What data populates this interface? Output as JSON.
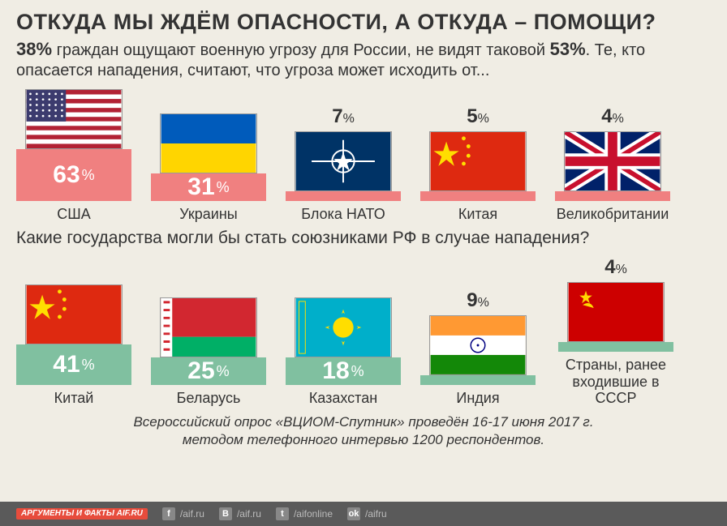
{
  "headline": "ОТКУДА МЫ ЖДЁМ ОПАСНОСТИ, А ОТКУДА – ПОМОЩИ?",
  "subhead_pct1": "38%",
  "subhead_text1": " граждан ощущают военную угрозу для России, не видят таковой ",
  "subhead_pct2": "53%",
  "subhead_text2": ". Те, кто опасается нападения, считают, что угроза может исходить от...",
  "question2": "Какие государства могли бы стать союзниками РФ в случае нападения?",
  "footer_line1": "Всероссийский опрос «ВЦИОМ-Спутник» проведён 16-17 июня 2017 г.",
  "footer_line2": "методом телефонного интервью 1200 респондентов.",
  "threat_bar_color": "#f08080",
  "ally_bar_color": "#80c0a0",
  "bg_color": "#f0ede4",
  "threats_max_pct": 63,
  "threats_bar_max_height": 64,
  "allies_max_pct": 41,
  "allies_bar_max_height": 50,
  "small_bar_height": 12,
  "flag_w": 120,
  "flag_h": 74,
  "threats": [
    {
      "flag": "usa",
      "pct": 63,
      "label": "США",
      "show_in_bar": true
    },
    {
      "flag": "ukr",
      "pct": 31,
      "label": "Украины",
      "show_in_bar": true
    },
    {
      "flag": "nato",
      "pct": 7,
      "label": "Блока НАТО",
      "show_in_bar": false
    },
    {
      "flag": "chn",
      "pct": 5,
      "label": "Китая",
      "show_in_bar": false
    },
    {
      "flag": "gbr",
      "pct": 4,
      "label": "Великобритании",
      "show_in_bar": false
    }
  ],
  "allies": [
    {
      "flag": "chn",
      "pct": 41,
      "label": "Китай",
      "show_in_bar": true
    },
    {
      "flag": "blr",
      "pct": 25,
      "label": "Беларусь",
      "show_in_bar": true
    },
    {
      "flag": "kaz",
      "pct": 18,
      "label": "Казахстан",
      "show_in_bar": true
    },
    {
      "flag": "ind",
      "pct": 9,
      "label": "Индия",
      "show_in_bar": false
    },
    {
      "flag": "ussr",
      "pct": 4,
      "label": "Страны, ранее входившие в СССР",
      "show_in_bar": false
    }
  ],
  "logo_text": "АРГУМЕНТЫ И ФАКТЫ AIF.RU",
  "socials": [
    {
      "icon": "f",
      "handle": "/aif.ru"
    },
    {
      "icon": "B",
      "handle": "/aif.ru"
    },
    {
      "icon": "t",
      "handle": "/aifonline"
    },
    {
      "icon": "ok",
      "handle": "/aifru"
    }
  ]
}
